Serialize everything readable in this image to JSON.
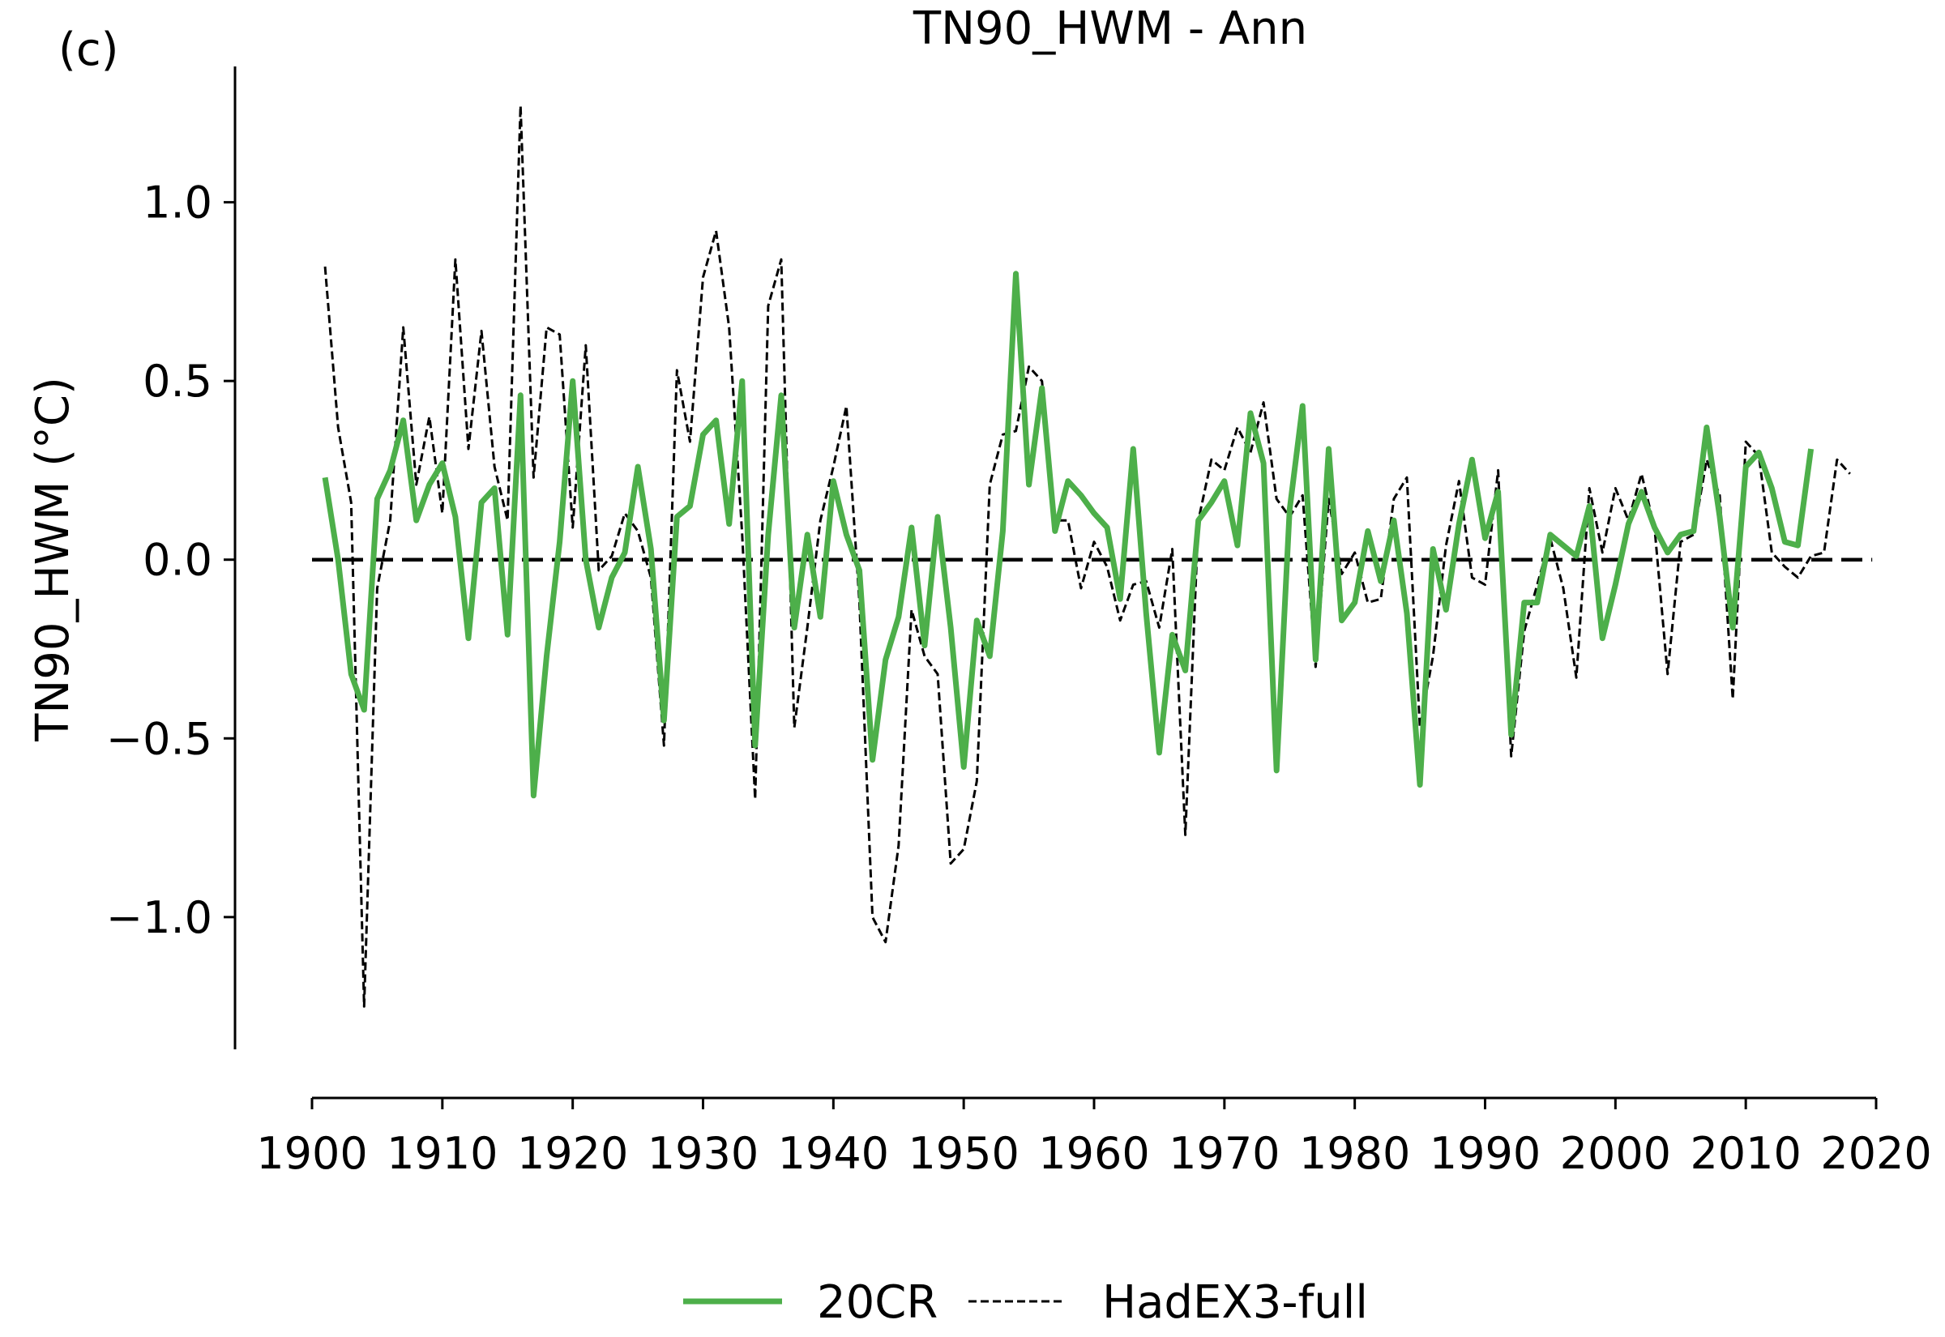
{
  "panel_label": "(c)",
  "chart_data": {
    "type": "line",
    "title": "TN90_HWM - Ann",
    "xlabel": "",
    "ylabel": "TN90_HWM (°C)",
    "xlim": [
      1900,
      2020
    ],
    "ylim": [
      -1.37,
      1.38
    ],
    "xticks": [
      1900,
      1910,
      1920,
      1930,
      1940,
      1950,
      1960,
      1970,
      1980,
      1990,
      2000,
      2010,
      2020
    ],
    "yticks": [
      1.0,
      0.5,
      0.0,
      -0.5,
      -1.0
    ],
    "ytick_labels": [
      "1.0",
      "0.5",
      "0.0",
      "−0.5",
      "−1.0"
    ],
    "zero_line": 0,
    "grid": false,
    "legend_position": "bottom-center",
    "series": [
      {
        "name": "20CR",
        "color": "#4daf4a",
        "style": "solid",
        "x_start": 1901,
        "values": [
          0.23,
          0.0,
          -0.32,
          -0.42,
          0.17,
          0.25,
          0.39,
          0.11,
          0.21,
          0.27,
          0.12,
          -0.22,
          0.16,
          0.2,
          -0.21,
          0.46,
          -0.66,
          -0.27,
          0.05,
          0.5,
          0.0,
          -0.19,
          -0.05,
          0.02,
          0.26,
          0.03,
          -0.45,
          0.12,
          0.15,
          0.35,
          0.39,
          0.1,
          0.5,
          -0.52,
          0.07,
          0.46,
          -0.19,
          0.07,
          -0.16,
          0.22,
          0.07,
          -0.03,
          -0.56,
          -0.28,
          -0.16,
          0.09,
          -0.24,
          0.12,
          -0.19,
          -0.58,
          -0.17,
          -0.27,
          0.08,
          0.8,
          0.21,
          0.48,
          0.08,
          0.22,
          0.18,
          0.13,
          0.09,
          -0.11,
          0.31,
          -0.15,
          -0.54,
          -0.21,
          -0.31,
          0.11,
          0.16,
          0.22,
          0.04,
          0.41,
          0.27,
          -0.59,
          0.14,
          0.43,
          -0.28,
          0.31,
          -0.17,
          -0.12,
          0.08,
          -0.06,
          0.11,
          -0.15,
          -0.63,
          0.03,
          -0.14,
          0.1,
          0.28,
          0.06,
          0.19,
          -0.49,
          -0.12,
          -0.12,
          0.07,
          0.04,
          0.01,
          0.15,
          -0.22,
          -0.07,
          0.1,
          0.19,
          0.09,
          0.02,
          0.07,
          0.08,
          0.37,
          0.12,
          -0.19,
          0.26,
          0.3,
          0.2,
          0.05,
          0.04,
          0.31
        ]
      },
      {
        "name": "HadEX3-full",
        "color": "#000000",
        "style": "dashed",
        "x_start": 1901,
        "values": [
          0.82,
          0.37,
          0.16,
          -1.25,
          -0.08,
          0.11,
          0.65,
          0.21,
          0.4,
          0.13,
          0.84,
          0.31,
          0.64,
          0.26,
          0.11,
          1.27,
          0.23,
          0.65,
          0.63,
          0.09,
          0.6,
          -0.03,
          0.01,
          0.13,
          0.08,
          -0.05,
          -0.52,
          0.53,
          0.33,
          0.79,
          0.92,
          0.65,
          0.07,
          -0.67,
          0.71,
          0.84,
          -0.47,
          -0.19,
          0.11,
          0.26,
          0.43,
          -0.12,
          -1.0,
          -1.07,
          -0.8,
          -0.14,
          -0.27,
          -0.32,
          -0.85,
          -0.81,
          -0.62,
          0.21,
          0.35,
          0.36,
          0.54,
          0.5,
          0.11,
          0.11,
          -0.08,
          0.05,
          -0.02,
          -0.17,
          -0.07,
          -0.06,
          -0.19,
          0.03,
          -0.77,
          0.11,
          0.28,
          0.25,
          0.37,
          0.3,
          0.44,
          0.17,
          0.12,
          0.18,
          -0.3,
          0.17,
          -0.04,
          0.02,
          -0.12,
          -0.11,
          0.17,
          0.23,
          -0.47,
          -0.27,
          0.04,
          0.22,
          -0.05,
          -0.07,
          0.25,
          -0.55,
          -0.2,
          -0.07,
          0.06,
          -0.08,
          -0.33,
          0.2,
          0.02,
          0.2,
          0.11,
          0.24,
          0.09,
          -0.32,
          0.05,
          0.07,
          0.28,
          0.18,
          -0.39,
          0.33,
          0.29,
          0.02,
          -0.02,
          -0.05,
          0.01,
          0.02,
          0.28,
          0.24
        ]
      }
    ]
  }
}
